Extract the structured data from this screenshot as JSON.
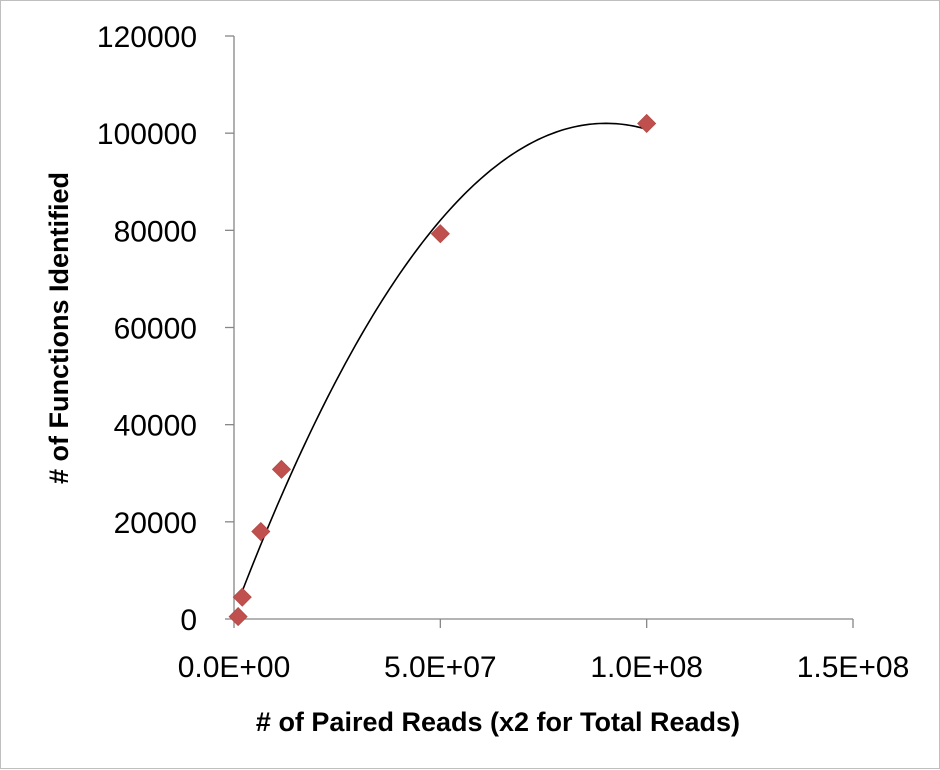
{
  "chart_data": {
    "type": "scatter",
    "xlabel": "# of Paired Reads (x2 for Total Reads)",
    "ylabel": "# of Functions Identified",
    "xlim": [
      0,
      150000000
    ],
    "ylim": [
      0,
      120000
    ],
    "x_ticks": [
      0,
      50000000,
      100000000,
      150000000
    ],
    "x_tick_labels": [
      "0.0E+00",
      "5.0E+07",
      "1.0E+08",
      "1.5E+08"
    ],
    "y_ticks": [
      0,
      20000,
      40000,
      60000,
      80000,
      100000,
      120000
    ],
    "y_tick_labels": [
      "0",
      "20000",
      "40000",
      "60000",
      "80000",
      "100000",
      "120000"
    ],
    "grid": false,
    "series": [
      {
        "marker": "diamond",
        "color": "#c0504d",
        "points": [
          {
            "x": 1000000,
            "y": 500
          },
          {
            "x": 2000000,
            "y": 4500
          },
          {
            "x": 6500000,
            "y": 18000
          },
          {
            "x": 11500000,
            "y": 30800
          },
          {
            "x": 50000000,
            "y": 79300
          },
          {
            "x": 100000000,
            "y": 102000
          }
        ]
      }
    ],
    "trendline": {
      "type": "polynomial",
      "order": 2,
      "color": "#000000",
      "x_range": [
        1500000,
        100000000
      ],
      "coefficients": [
        1310,
        0.002235,
        -1.24e-11
      ]
    }
  }
}
